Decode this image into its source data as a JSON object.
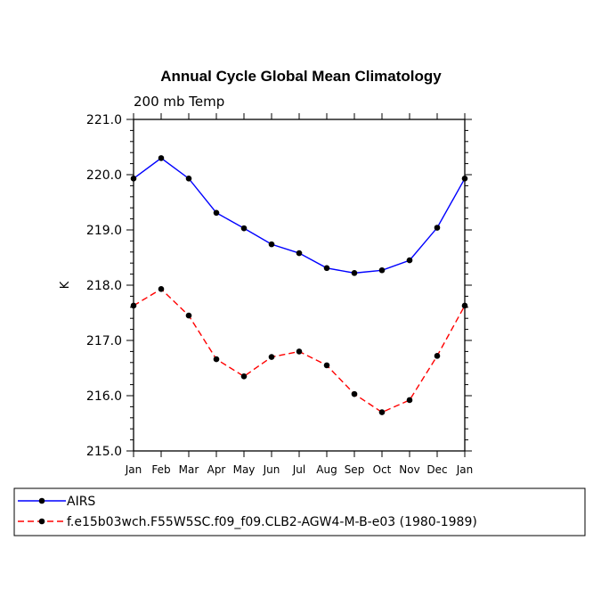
{
  "chart_data": {
    "type": "line",
    "title": "Annual Cycle Global Mean Climatology",
    "subtitle": "200 mb Temp",
    "xlabel": "",
    "ylabel": "K",
    "categories": [
      "Jan",
      "Feb",
      "Mar",
      "Apr",
      "May",
      "Jun",
      "Jul",
      "Aug",
      "Sep",
      "Oct",
      "Nov",
      "Dec",
      "Jan"
    ],
    "ylim": [
      215.0,
      221.0
    ],
    "yticks": [
      "215.0",
      "216.0",
      "217.0",
      "218.0",
      "219.0",
      "220.0",
      "221.0"
    ],
    "grid": false,
    "legend_position": "bottom",
    "series": [
      {
        "name": "AIRS",
        "color": "#0000ff",
        "style": "solid",
        "values": [
          219.93,
          220.3,
          219.93,
          219.31,
          219.03,
          218.74,
          218.58,
          218.31,
          218.22,
          218.27,
          218.45,
          219.04,
          219.93
        ]
      },
      {
        "name": "f.e15b03wch.F55W5SC.f09_f09.CLB2-AGW4-M-B-e03 (1980-1989)",
        "color": "#ff0000",
        "style": "dashed",
        "values": [
          217.63,
          217.93,
          217.45,
          216.66,
          216.35,
          216.7,
          216.8,
          216.55,
          216.03,
          215.7,
          215.92,
          216.72,
          217.63
        ]
      }
    ]
  }
}
